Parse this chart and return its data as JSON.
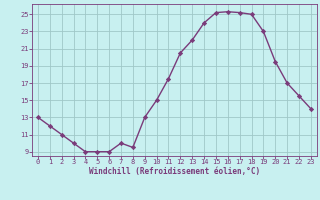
{
  "x": [
    0,
    1,
    2,
    3,
    4,
    5,
    6,
    7,
    8,
    9,
    10,
    11,
    12,
    13,
    14,
    15,
    16,
    17,
    18,
    19,
    20,
    21,
    22,
    23
  ],
  "y": [
    13,
    12,
    11,
    10,
    9,
    9,
    9,
    10,
    9.5,
    13,
    15,
    17.5,
    20.5,
    22,
    24,
    25.2,
    25.3,
    25.2,
    25,
    23,
    19.5,
    17,
    15.5,
    14
  ],
  "line_color": "#7a3b7a",
  "marker": "D",
  "marker_size": 2.2,
  "bg_color": "#c8f0f0",
  "grid_color": "#a0c8c8",
  "xlabel": "Windchill (Refroidissement éolien,°C)",
  "xlabel_color": "#7a3b7a",
  "tick_color": "#7a3b7a",
  "ylim": [
    8.5,
    26.2
  ],
  "yticks": [
    9,
    11,
    13,
    15,
    17,
    19,
    21,
    23,
    25
  ],
  "xticks": [
    0,
    1,
    2,
    3,
    4,
    5,
    6,
    7,
    8,
    9,
    10,
    11,
    12,
    13,
    14,
    15,
    16,
    17,
    18,
    19,
    20,
    21,
    22,
    23
  ],
  "linewidth": 1.0
}
